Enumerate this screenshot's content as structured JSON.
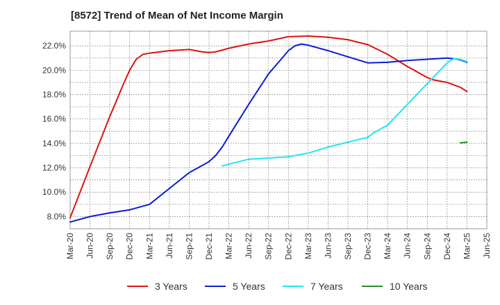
{
  "chart_data": {
    "type": "line",
    "title": "[8572]  Trend of Mean of Net Income Margin",
    "xlabel": "",
    "ylabel": "",
    "x_ticks": [
      "Mar-20",
      "Jun-20",
      "Sep-20",
      "Dec-20",
      "Mar-21",
      "Jun-21",
      "Sep-21",
      "Dec-21",
      "Mar-22",
      "Jun-22",
      "Sep-22",
      "Dec-22",
      "Mar-23",
      "Jun-23",
      "Sep-23",
      "Dec-23",
      "Mar-24",
      "Jun-24",
      "Sep-24",
      "Dec-24",
      "Mar-25",
      "Jun-25"
    ],
    "y_ticks": [
      "8.0%",
      "10.0%",
      "12.0%",
      "14.0%",
      "16.0%",
      "18.0%",
      "20.0%",
      "22.0%"
    ],
    "ylim": [
      7.0,
      23.2
    ],
    "grid": true,
    "legend_position": "bottom",
    "series": [
      {
        "name": "3 Years",
        "color": "#dd1111",
        "points": [
          [
            "Mar-20",
            7.9
          ],
          [
            "Jun-20",
            12.1
          ],
          [
            "Sep-20",
            16.2
          ],
          [
            "Oct-20",
            17.5
          ],
          [
            "Nov-20",
            18.8
          ],
          [
            "Dec-20",
            20.0
          ],
          [
            "Jan-21",
            20.9
          ],
          [
            "Feb-21",
            21.3
          ],
          [
            "Mar-21",
            21.4
          ],
          [
            "Jun-21",
            21.6
          ],
          [
            "Sep-21",
            21.7
          ],
          [
            "Nov-21",
            21.5
          ],
          [
            "Dec-21",
            21.45
          ],
          [
            "Jan-22",
            21.5
          ],
          [
            "Mar-22",
            21.8
          ],
          [
            "Jun-22",
            22.15
          ],
          [
            "Sep-22",
            22.4
          ],
          [
            "Dec-22",
            22.75
          ],
          [
            "Mar-23",
            22.8
          ],
          [
            "Jun-23",
            22.7
          ],
          [
            "Sep-23",
            22.5
          ],
          [
            "Dec-23",
            22.1
          ],
          [
            "Mar-24",
            21.3
          ],
          [
            "Jun-24",
            20.3
          ],
          [
            "Sep-24",
            19.4
          ],
          [
            "Oct-24",
            19.2
          ],
          [
            "Dec-24",
            19.0
          ],
          [
            "Jan-25",
            18.8
          ],
          [
            "Feb-25",
            18.6
          ],
          [
            "Mar-25",
            18.25
          ]
        ]
      },
      {
        "name": "5 Years",
        "color": "#0a1ad8",
        "points": [
          [
            "Mar-20",
            7.55
          ],
          [
            "Jun-20",
            8.0
          ],
          [
            "Sep-20",
            8.3
          ],
          [
            "Dec-20",
            8.55
          ],
          [
            "Mar-21",
            9.0
          ],
          [
            "Jun-21",
            10.3
          ],
          [
            "Sep-21",
            11.6
          ],
          [
            "Dec-21",
            12.5
          ],
          [
            "Jan-22",
            13.0
          ],
          [
            "Feb-22",
            13.7
          ],
          [
            "Mar-22",
            14.6
          ],
          [
            "Jun-22",
            17.2
          ],
          [
            "Sep-22",
            19.7
          ],
          [
            "Dec-22",
            21.6
          ],
          [
            "Jan-23",
            22.0
          ],
          [
            "Feb-23",
            22.15
          ],
          [
            "Mar-23",
            22.05
          ],
          [
            "Jun-23",
            21.6
          ],
          [
            "Sep-23",
            21.1
          ],
          [
            "Dec-23",
            20.6
          ],
          [
            "Mar-24",
            20.65
          ],
          [
            "Jun-24",
            20.8
          ],
          [
            "Sep-24",
            20.9
          ],
          [
            "Dec-24",
            21.0
          ],
          [
            "Jan-25",
            20.95
          ],
          [
            "Feb-25",
            20.85
          ],
          [
            "Mar-25",
            20.65
          ]
        ]
      },
      {
        "name": "7 Years",
        "color": "#22e6ec",
        "points": [
          [
            "Feb-22",
            12.15
          ],
          [
            "Mar-22",
            12.3
          ],
          [
            "Jun-22",
            12.7
          ],
          [
            "Sep-22",
            12.8
          ],
          [
            "Dec-22",
            12.9
          ],
          [
            "Mar-23",
            13.2
          ],
          [
            "Jun-23",
            13.7
          ],
          [
            "Sep-23",
            14.1
          ],
          [
            "Dec-23",
            14.5
          ],
          [
            "Jan-24",
            14.9
          ],
          [
            "Mar-24",
            15.5
          ],
          [
            "Jun-24",
            17.2
          ],
          [
            "Sep-24",
            18.9
          ],
          [
            "Dec-24",
            20.6
          ],
          [
            "Jan-25",
            20.95
          ],
          [
            "Feb-25",
            20.9
          ],
          [
            "Mar-25",
            20.7
          ]
        ]
      },
      {
        "name": "10 Years",
        "color": "#2c8c28",
        "points": [
          [
            "Feb-25",
            14.05
          ],
          [
            "Mar-25",
            14.1
          ]
        ]
      }
    ]
  }
}
